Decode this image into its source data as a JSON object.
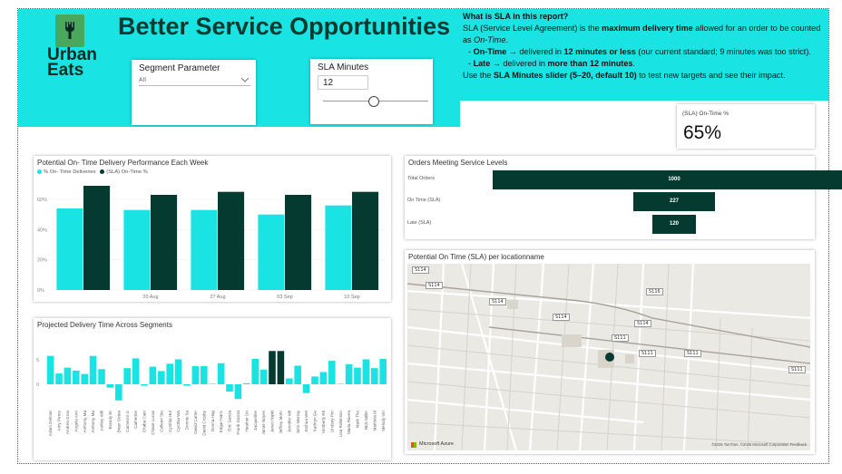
{
  "header": {
    "title": "Better Service Opportunities",
    "logo_line1": "Urban",
    "logo_line2": "Eats"
  },
  "segment_slicer": {
    "label": "Segment Parameter",
    "value": "All"
  },
  "sla_slicer": {
    "label": "SLA Minutes",
    "value": "12"
  },
  "sla_info": {
    "heading": "What is SLA in this report?",
    "p1_a": " SLA (Service Level Agreement) is the ",
    "p1_b": "maximum delivery time",
    "p1_c": " allowed for an order to be counted as ",
    "p1_d": "On-Time",
    "p1_e": ".",
    "b1_a": "- ",
    "b1_b": "On-Time",
    "b1_c": " → delivered in ",
    "b1_d": "12 minutes or less",
    "b1_e": " (our current standard; 9 minutes was too strict).",
    "b2_a": "- ",
    "b2_b": "Late",
    "b2_c": " → delivered in ",
    "b2_d": "more than 12 minutes",
    "b2_e": ".",
    "p2_a": "Use the ",
    "p2_b": "SLA Minutes slider (5–20, default 10)",
    "p2_c": " to test new targets and see their impact."
  },
  "kpi": {
    "label": "(SLA) On-Time %",
    "value": "65%"
  },
  "colors": {
    "cyan": "#19e3e3",
    "dark": "#053a30"
  },
  "weekly_chart": {
    "title": "Potential On- Time Delivery Performance Each Week",
    "legend_a": "% On- Time Deliveries",
    "legend_b": "(SLA) On-Time %",
    "y_ticks": [
      "60%",
      "40%",
      "20%",
      "0%"
    ],
    "x_labels": [
      "20 Aug",
      "27 Aug",
      "03 Sep",
      "10 Sep"
    ]
  },
  "chart_data": [
    {
      "type": "bar",
      "title": "Potential On- Time Delivery Performance Each Week",
      "categories": [
        "",
        "20 Aug",
        "27 Aug",
        "03 Sep",
        "10 Sep"
      ],
      "series": [
        {
          "name": "% On- Time Deliveries",
          "values": [
            54,
            53,
            53,
            50,
            56
          ]
        },
        {
          "name": "(SLA) On-Time %",
          "values": [
            69,
            63,
            65,
            63,
            65
          ]
        }
      ],
      "ylim": [
        0,
        72
      ]
    },
    {
      "type": "bar",
      "title": "Projected Delivery Time Across Segments",
      "categories": [
        "Adam Delmar",
        "Amy Perez",
        "Andrea Gros",
        "Angela Ann",
        "Anthony Ma",
        "Anthony Ma",
        "Ashley Will",
        "Brandy Br",
        "Brian Ostea",
        "Cameron G",
        "Catherine",
        "Chaba Cain",
        "Chase Lucas",
        "Colleen Stu",
        "Cynthia Hut",
        "Cynthia Wa",
        "Dennis Sa",
        "David Carter",
        "David Crosby",
        "Donna Hag",
        "Edgar Hanc",
        "Eric Garcia",
        "Frank Garcia",
        "Heather Do",
        "Jacqueline",
        "Jamie Noyes",
        "Janet Hopki",
        "Jeffrey Mohr",
        "Jennifer Wil",
        "John Murray",
        "Joshua Wel",
        "Kathryn Ge",
        "Kimberly Rit",
        "Lindsey Per",
        "Lisa Robinson",
        "Maria Rivera",
        "Mark Tho",
        "Nick Miller",
        "Matthew M",
        "Melody Vin"
      ],
      "values": [
        5.8,
        2.2,
        3.4,
        2.8,
        2.1,
        5.8,
        3.1,
        -0.7,
        -3.3,
        3.3,
        5.3,
        -0.3,
        3.6,
        2.7,
        4.2,
        5.1,
        -0.3,
        3.7,
        3.7,
        0.1,
        4.3,
        -1.5,
        -3.0,
        0.2,
        5.2,
        3.0,
        6.8,
        6.8,
        1.2,
        3.8,
        -1.8,
        1.6,
        2.5,
        4.8,
        0.1,
        4.1,
        3.4,
        5.1,
        3.3,
        5.2
      ],
      "highlight": [
        26,
        27
      ],
      "y_ticks": [
        "5",
        "0"
      ]
    },
    {
      "type": "bar",
      "title": "Orders Meeting Service Levels",
      "categories": [
        "Total Orders",
        "On Time (SLA)",
        "Late (SLA)"
      ],
      "values": [
        1000,
        227,
        120
      ]
    }
  ],
  "segments_chart": {
    "title": "Projected Delivery Time Across Segments"
  },
  "funnel": {
    "title": "Orders Meeting Service Levels",
    "labels": [
      "Total Orders",
      "On Time (SLA)",
      "Late (SLA)"
    ],
    "values": [
      "1000",
      "227",
      "120"
    ]
  },
  "map": {
    "title": "Potential On Time (SLA) per locationname",
    "brand": "Microsoft Azure",
    "copyright": "©2025 TomTom, ©2025 Microsoft Corporation Feedback",
    "roads": [
      "S114",
      "S114",
      "S114",
      "S114",
      "S114",
      "S111",
      "S111",
      "S111",
      "S111",
      "S116"
    ]
  }
}
